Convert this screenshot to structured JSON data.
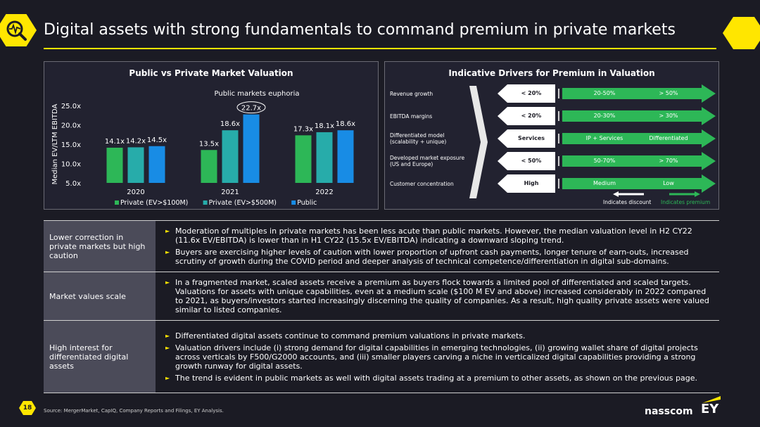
{
  "header": {
    "title": "Digital assets with strong fundamentals to command premium in private markets",
    "icon": "magnifier-pulse-icon"
  },
  "left_chart": {
    "title": "Public vs Private Market Valuation",
    "annotation": "Public markets euphoria",
    "chart_data": {
      "type": "bar",
      "title": "Public vs Private Market Valuation",
      "ylabel": "Median EV/LTM EBITDA",
      "categories": [
        "2020",
        "2021",
        "2022"
      ],
      "ylim": [
        5,
        25
      ],
      "yticks": [
        "5.0x",
        "10.0x",
        "15.0x",
        "20.0x",
        "25.0x"
      ],
      "series": [
        {
          "name": "Private (EV>$100M)",
          "color": "#2db757",
          "values": [
            14.1,
            13.5,
            17.3
          ],
          "labels": [
            "14.1x",
            "13.5x",
            "17.3x"
          ]
        },
        {
          "name": "Private (EV>$500M)",
          "color": "#27acaa",
          "values": [
            14.2,
            18.6,
            18.1
          ],
          "labels": [
            "14.2x",
            "18.6x",
            "18.1x"
          ]
        },
        {
          "name": "Public",
          "color": "#188ce5",
          "values": [
            14.5,
            22.7,
            18.6
          ],
          "labels": [
            "14.5x",
            "22.7x",
            "18.6x"
          ]
        }
      ],
      "legend": "bottom"
    }
  },
  "right_chart": {
    "title": "Indicative Drivers for Premium in Valuation",
    "rows": [
      {
        "label": "Revenue growth",
        "discount": "< 20%",
        "mid": "20-50%",
        "premium": "> 50%"
      },
      {
        "label": "EBITDA margins",
        "discount": "< 20%",
        "mid": "20-30%",
        "premium": "> 30%"
      },
      {
        "label": "Differentiated model (scalability + unique)",
        "discount": "Services",
        "mid": "IP + Services",
        "premium": "Differentiated"
      },
      {
        "label": "Developed market exposure (US and Europe)",
        "discount": "< 50%",
        "mid": "50-70%",
        "premium": "> 70%"
      },
      {
        "label": "Customer concentration",
        "discount": "High",
        "mid": "Medium",
        "premium": "Low"
      }
    ],
    "legend_discount": "Indicates discount",
    "legend_premium": "Indicates premium"
  },
  "sections": [
    {
      "label": "Lower correction in private markets but high caution",
      "bullets": [
        "Moderation of multiples in private markets has been less acute than public markets. However, the median valuation level in H2 CY22 (11.6x EV/EBITDA) is lower than in H1 CY22 (15.5x EV/EBITDA) indicating a downward sloping trend.",
        "Buyers are exercising higher levels of caution with lower proportion of upfront cash payments, longer tenure of earn-outs, increased scrutiny of growth during the COVID period and deeper analysis of technical competence/differentiation in digital sub-domains."
      ]
    },
    {
      "label": "Market values scale",
      "bullets": [
        "In a fragmented market, scaled assets receive a premium as buyers flock towards a limited pool of differentiated and scaled targets. Valuations for assets with unique capabilities, even at a medium scale ($100 M EV and above) increased considerably in 2022 compared to 2021, as buyers/investors started increasingly discerning the quality of companies. As a result, high quality private assets were valued similar to listed companies."
      ]
    },
    {
      "label": "High interest for differentiated digital assets",
      "bullets": [
        "Differentiated digital assets continue to command premium valuations in private markets.",
        "Valuation drivers include (i) strong demand for digital capabilities in emerging technologies, (ii) growing wallet share of digital projects across verticals by F500/G2000 accounts, and (iii) smaller players carving a niche in verticalized digital capabilities providing a strong growth runway for digital assets.",
        "The trend is evident in public markets as well with digital assets trading at a premium to other assets, as shown on the previous page."
      ]
    }
  ],
  "footer": {
    "page_number": "18",
    "source": "Source: MergerMarket, CapIQ, Company Reports and Filings, EY Analysis.",
    "logo_nasscom": "nasscom",
    "logo_ey": "EY"
  }
}
